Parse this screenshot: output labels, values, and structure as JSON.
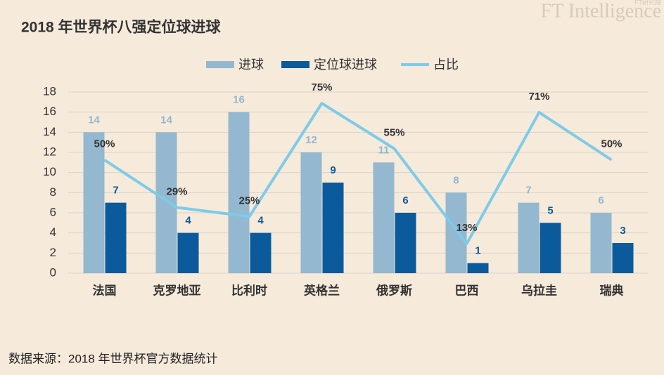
{
  "brand": "FT Intelligence",
  "brand_sub": "FT研究院",
  "source": "数据来源：2018 年世界杯官方数据统计",
  "chart_data": {
    "type": "bar",
    "title": "2018 年世界杯八强定位球进球",
    "categories": [
      "法国",
      "克罗地亚",
      "比利时",
      "英格兰",
      "俄罗斯",
      "巴西",
      "乌拉圭",
      "瑞典"
    ],
    "series": [
      {
        "name": "进球",
        "type": "bar",
        "color": "#93b8d0",
        "values": [
          14,
          14,
          16,
          12,
          11,
          8,
          7,
          6
        ]
      },
      {
        "name": "定位球进球",
        "type": "bar",
        "color": "#0a5a9c",
        "values": [
          7,
          4,
          4,
          9,
          6,
          1,
          5,
          3
        ]
      },
      {
        "name": "占比",
        "type": "line",
        "axis": "y2",
        "color": "#7ecbe8",
        "values": [
          50,
          29,
          25,
          75,
          55,
          13,
          71,
          50
        ],
        "value_labels": [
          "50%",
          "29%",
          "25%",
          "75%",
          "55%",
          "13%",
          "71%",
          "50%"
        ]
      }
    ],
    "ylim": [
      0,
      18
    ],
    "yticks": [
      0,
      2,
      4,
      6,
      8,
      10,
      12,
      14,
      16,
      18
    ],
    "y2lim": [
      0,
      80
    ],
    "grid": true,
    "legend": "top"
  }
}
